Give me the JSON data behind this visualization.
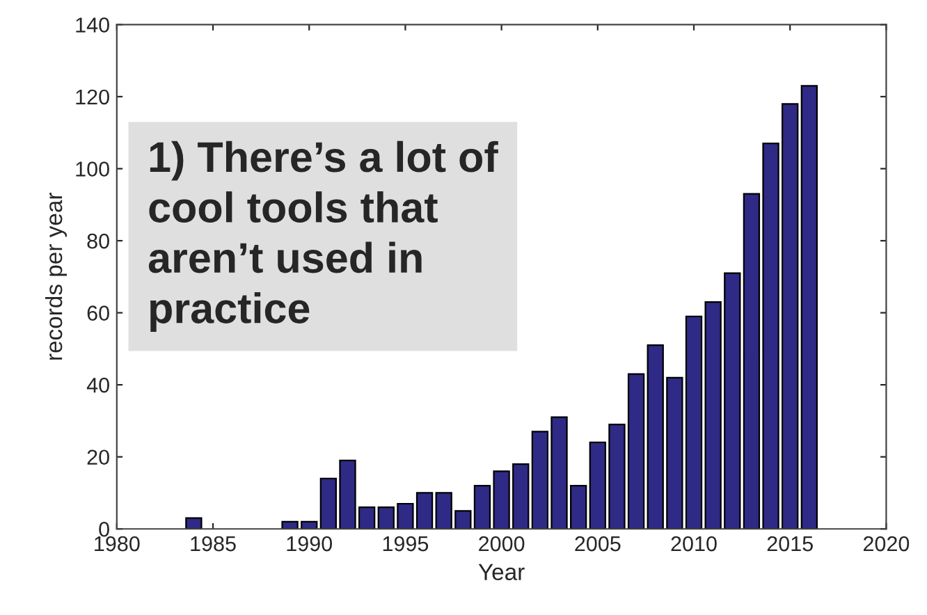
{
  "chart_data": {
    "type": "bar",
    "xlabel": "Year",
    "ylabel": "records per year",
    "x": [
      1984,
      1989,
      1990,
      1991,
      1992,
      1993,
      1994,
      1995,
      1996,
      1997,
      1998,
      1999,
      2000,
      2001,
      2002,
      2003,
      2004,
      2005,
      2006,
      2007,
      2008,
      2009,
      2010,
      2011,
      2012,
      2013,
      2014,
      2015,
      2016
    ],
    "values": [
      3,
      2,
      2,
      14,
      19,
      6,
      6,
      7,
      10,
      10,
      5,
      12,
      16,
      18,
      27,
      31,
      12,
      24,
      29,
      43,
      51,
      42,
      59,
      63,
      71,
      93,
      107,
      118,
      123
    ],
    "color": "#2e2a85",
    "xlim": [
      1980,
      2020
    ],
    "xticks": [
      1980,
      1985,
      1990,
      1995,
      2000,
      2005,
      2010,
      2015,
      2020
    ],
    "ylim": [
      0,
      140
    ],
    "yticks": [
      0,
      20,
      40,
      60,
      80,
      100,
      120,
      140
    ],
    "grid": false,
    "annotations": [
      "1) There’s a lot of\ncool tools that\naren’t used in\npractice"
    ]
  }
}
